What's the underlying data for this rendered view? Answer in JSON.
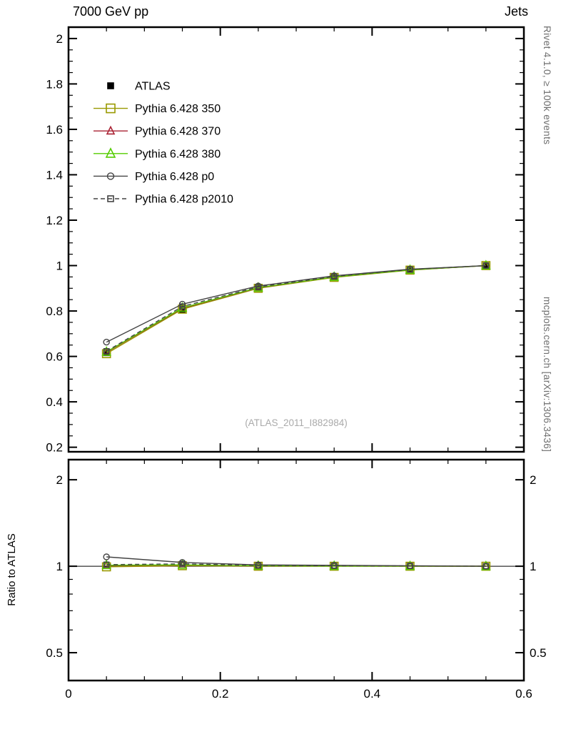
{
  "header": {
    "title_left": "7000 GeV pp",
    "title_right": "Jets"
  },
  "side_notes": {
    "rivet": "Rivet 4.1.0, ≥ 100k events",
    "mcplots": "mcplots.cern.ch [arXiv:1306.3436]"
  },
  "watermark": "(ATLAS_2011_I882984)",
  "chart_data": {
    "type": "line",
    "x": [
      0.05,
      0.15,
      0.25,
      0.35,
      0.45,
      0.55
    ],
    "x_axis": {
      "lim": [
        0,
        0.6
      ],
      "ticks": [
        0,
        0.2,
        0.4,
        0.6
      ],
      "tick_labels": [
        "0",
        "0.2",
        "0.4",
        "0.6"
      ],
      "minor_step": 0.05
    },
    "panels": [
      {
        "id": "main",
        "yscale": "linear",
        "ylim": [
          0.18,
          2.05
        ],
        "yticks": [
          0.2,
          0.4,
          0.6,
          0.8,
          1.0,
          1.2,
          1.4,
          1.6,
          1.8,
          2.0
        ],
        "ytick_labels": [
          "0.2",
          "0.4",
          "0.6",
          "0.8",
          "1",
          "1.2",
          "1.4",
          "1.6",
          "1.8",
          "2"
        ],
        "yminor_step": 0.05,
        "label_sides": [
          "left"
        ],
        "series": [
          {
            "name": "ATLAS",
            "color": "#000000",
            "marker": "square",
            "filled": true,
            "msize": 7,
            "line": "none",
            "values": [
              0.615,
              0.805,
              0.9,
              0.948,
              0.98,
              1.0
            ]
          },
          {
            "name": "Pythia 6.428 350",
            "color": "#999900",
            "marker": "square",
            "filled": false,
            "msize": 11,
            "line": "solid",
            "values": [
              0.612,
              0.808,
              0.9,
              0.948,
              0.98,
              1.0
            ]
          },
          {
            "name": "Pythia 6.428 370",
            "color": "#aa2233",
            "marker": "triangle",
            "filled": false,
            "msize": 9,
            "line": "solid",
            "values": [
              0.618,
              0.812,
              0.902,
              0.95,
              0.981,
              1.0
            ]
          },
          {
            "name": "Pythia 6.428 380",
            "color": "#55cc00",
            "marker": "triangle",
            "filled": false,
            "msize": 11,
            "line": "solid",
            "values": [
              0.62,
              0.814,
              0.903,
              0.95,
              0.981,
              1.0
            ]
          },
          {
            "name": "Pythia 6.428 p0",
            "color": "#444444",
            "marker": "circle",
            "filled": false,
            "msize": 8,
            "line": "solid",
            "values": [
              0.663,
              0.83,
              0.91,
              0.955,
              0.984,
              1.0
            ]
          },
          {
            "name": "Pythia 6.428 p2010",
            "color": "#444444",
            "marker": "square",
            "filled": false,
            "msize": 7,
            "line": "dashed",
            "values": [
              0.623,
              0.82,
              0.906,
              0.952,
              0.983,
              1.0
            ]
          }
        ]
      },
      {
        "id": "ratio",
        "ylabel": "Ratio to ATLAS",
        "yscale": "log",
        "ylim": [
          0.4,
          2.35
        ],
        "yticks": [
          0.5,
          1,
          2
        ],
        "ytick_labels": [
          "0.5",
          "1",
          "2"
        ],
        "yminors": [
          0.4,
          0.6,
          0.7,
          0.8,
          0.9
        ],
        "refline": 1,
        "label_sides": [
          "left",
          "right"
        ],
        "series": [
          {
            "name": "Pythia 6.428 350",
            "color": "#999900",
            "marker": "square",
            "filled": false,
            "msize": 11,
            "line": "solid",
            "values": [
              0.995,
              1.004,
              1.0,
              1.0,
              1.0,
              1.0
            ]
          },
          {
            "name": "Pythia 6.428 370",
            "color": "#aa2233",
            "marker": "triangle",
            "filled": false,
            "msize": 9,
            "line": "solid",
            "values": [
              1.005,
              1.009,
              1.002,
              1.002,
              1.001,
              1.0
            ]
          },
          {
            "name": "Pythia 6.428 380",
            "color": "#55cc00",
            "marker": "triangle",
            "filled": false,
            "msize": 11,
            "line": "solid",
            "values": [
              1.008,
              1.011,
              1.003,
              1.002,
              1.001,
              1.0
            ]
          },
          {
            "name": "Pythia 6.428 p0",
            "color": "#444444",
            "marker": "circle",
            "filled": false,
            "msize": 8,
            "line": "solid",
            "values": [
              1.078,
              1.031,
              1.011,
              1.007,
              1.004,
              1.0
            ]
          },
          {
            "name": "Pythia 6.428 p2010",
            "color": "#444444",
            "marker": "square",
            "filled": false,
            "msize": 7,
            "line": "dashed",
            "values": [
              1.013,
              1.019,
              1.007,
              1.004,
              1.003,
              1.0
            ]
          }
        ]
      }
    ]
  }
}
